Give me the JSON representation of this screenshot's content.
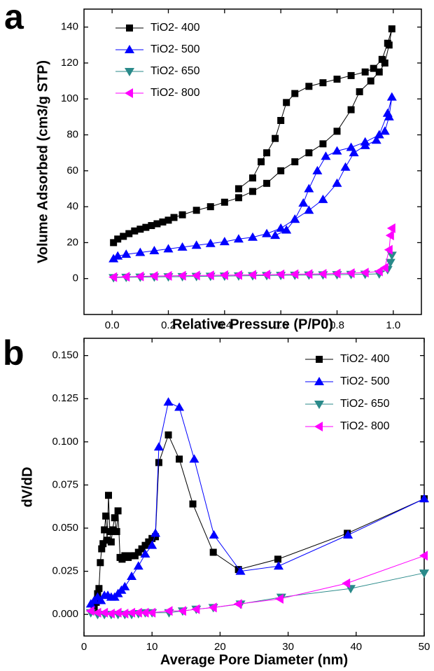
{
  "chart_data": [
    {
      "type": "line",
      "panel_label": "a",
      "x_label": "Relative Pressure (P/P0)",
      "y_label": "Volume Adsorbed (cm3/g STP)",
      "xlim": [
        -0.1,
        1.1
      ],
      "ylim": [
        -20,
        150
      ],
      "xticks": [
        {
          "value": 0,
          "label": "0.0"
        },
        0.2,
        0.4,
        0.6,
        0.8,
        {
          "value": 1,
          "label": "1.0"
        }
      ],
      "yticks": [
        0,
        20,
        40,
        60,
        80,
        100,
        120,
        140
      ],
      "legend": "upper left",
      "series": [
        {
          "name": "TiO2- 400",
          "color": "#000000",
          "marker": "square",
          "x": [
            0.005,
            0.02,
            0.04,
            0.06,
            0.08,
            0.1,
            0.12,
            0.14,
            0.16,
            0.18,
            0.2,
            0.22,
            0.25,
            0.3,
            0.35,
            0.4,
            0.45,
            0.5,
            0.55,
            0.6,
            0.65,
            0.7,
            0.75,
            0.8,
            0.85,
            0.88,
            0.92,
            0.95,
            0.97,
            0.985,
            0.995,
            0.98,
            0.96,
            0.93,
            0.9,
            0.85,
            0.8,
            0.75,
            0.7,
            0.65,
            0.62,
            0.6,
            0.58,
            0.55,
            0.53,
            0.5,
            0.45
          ],
          "values": [
            20,
            22,
            23.5,
            25,
            26.5,
            27.5,
            28.5,
            29.5,
            30.5,
            31.5,
            32.5,
            34,
            35.5,
            38,
            40,
            42.5,
            45,
            48.5,
            53,
            60,
            65,
            70,
            75,
            82,
            94,
            104,
            110,
            115,
            120,
            130,
            139,
            131,
            122,
            117,
            115,
            113,
            111,
            109,
            107,
            103,
            98,
            88,
            78,
            70,
            65,
            56,
            50
          ]
        },
        {
          "name": "TiO2- 500",
          "color": "#0000ff",
          "marker": "triangle-up",
          "x": [
            0.005,
            0.02,
            0.05,
            0.1,
            0.15,
            0.2,
            0.25,
            0.3,
            0.35,
            0.4,
            0.45,
            0.5,
            0.55,
            0.6,
            0.65,
            0.7,
            0.75,
            0.8,
            0.83,
            0.86,
            0.9,
            0.94,
            0.97,
            0.985,
            0.995,
            0.98,
            0.95,
            0.9,
            0.85,
            0.8,
            0.76,
            0.73,
            0.7,
            0.68,
            0.65,
            0.62,
            0.58
          ],
          "values": [
            11,
            12.5,
            13.5,
            14.5,
            15.5,
            16.5,
            17.5,
            18.5,
            19.5,
            20.5,
            22,
            23,
            25,
            28,
            33,
            38,
            44,
            53,
            62,
            70,
            74,
            77,
            82,
            90,
            101,
            92,
            80,
            76,
            73,
            71,
            68,
            60,
            50,
            42,
            33,
            27,
            24
          ]
        },
        {
          "name": "TiO2- 650",
          "color": "#2a8a8a",
          "marker": "triangle-down",
          "x": [
            0.005,
            0.05,
            0.1,
            0.15,
            0.2,
            0.25,
            0.3,
            0.35,
            0.4,
            0.45,
            0.5,
            0.55,
            0.6,
            0.65,
            0.7,
            0.75,
            0.8,
            0.85,
            0.9,
            0.95,
            0.98,
            0.99,
            0.995
          ],
          "values": [
            0.5,
            0.7,
            0.8,
            0.9,
            1,
            1.1,
            1.2,
            1.3,
            1.4,
            1.5,
            1.6,
            1.7,
            1.8,
            1.9,
            2,
            2.1,
            2.2,
            2.3,
            2.4,
            2.6,
            5,
            9,
            13
          ]
        },
        {
          "name": "TiO2- 800",
          "color": "#ff00ff",
          "marker": "triangle-left",
          "x": [
            0.005,
            0.05,
            0.1,
            0.15,
            0.2,
            0.25,
            0.3,
            0.35,
            0.4,
            0.45,
            0.5,
            0.55,
            0.6,
            0.65,
            0.7,
            0.75,
            0.8,
            0.85,
            0.9,
            0.95,
            0.97,
            0.985,
            0.99,
            0.995
          ],
          "values": [
            0.8,
            1,
            1.2,
            1.4,
            1.5,
            1.6,
            1.7,
            1.8,
            1.9,
            2,
            2.1,
            2.2,
            2.3,
            2.4,
            2.5,
            2.6,
            2.8,
            3,
            3.3,
            4,
            6,
            16,
            24,
            28
          ]
        }
      ]
    },
    {
      "type": "line",
      "panel_label": "b",
      "x_label": "Average Pore Diameter (nm)",
      "y_label": "dV/dD",
      "xlim": [
        0,
        50
      ],
      "ylim": [
        -0.0125,
        0.16
      ],
      "xticks": [
        0,
        10,
        20,
        30,
        40,
        50
      ],
      "yticks": [
        {
          "value": 0,
          "label": "0.000"
        },
        {
          "value": 0.025,
          "label": "0.025"
        },
        {
          "value": 0.05,
          "label": "0.050"
        },
        {
          "value": 0.075,
          "label": "0.075"
        },
        {
          "value": 0.1,
          "label": "0.100"
        },
        {
          "value": 0.125,
          "label": "0.125"
        },
        {
          "value": 0.15,
          "label": "0.150"
        }
      ],
      "legend": "upper right",
      "series": [
        {
          "name": "TiO2- 400",
          "color": "#000000",
          "marker": "square",
          "x": [
            1.5,
            1.8,
            2,
            2.2,
            2.4,
            2.6,
            2.8,
            3,
            3.2,
            3.4,
            3.6,
            3.8,
            4,
            4.2,
            4.5,
            4.8,
            5,
            5.3,
            5.6,
            6,
            6.5,
            7,
            7.5,
            8,
            8.5,
            9,
            9.5,
            10,
            10.5,
            11,
            12.4,
            14,
            16,
            19,
            22.7,
            28.5,
            38.7,
            50
          ],
          "values": [
            0.003,
            0.007,
            0.012,
            0.015,
            0.03,
            0.038,
            0.041,
            0.049,
            0.057,
            0.043,
            0.069,
            0.048,
            0.042,
            0.049,
            0.056,
            0.048,
            0.06,
            0.033,
            0.032,
            0.034,
            0.033,
            0.034,
            0.034,
            0.036,
            0.038,
            0.04,
            0.042,
            0.044,
            0.045,
            0.088,
            0.104,
            0.09,
            0.064,
            0.036,
            0.026,
            0.032,
            0.047,
            0.067
          ]
        },
        {
          "name": "TiO2- 500",
          "color": "#0000ff",
          "marker": "triangle-up",
          "x": [
            1,
            1.5,
            2,
            2.5,
            3,
            3.5,
            4,
            4.5,
            5,
            5.5,
            6,
            7,
            8,
            9,
            10,
            10.5,
            11,
            12.4,
            14,
            16.2,
            19.1,
            23,
            28.6,
            38.8,
            50
          ],
          "values": [
            0.006,
            0.008,
            0.01,
            0.008,
            0.011,
            0.011,
            0.01,
            0.01,
            0.012,
            0.014,
            0.016,
            0.022,
            0.028,
            0.035,
            0.04,
            0.047,
            0.097,
            0.123,
            0.12,
            0.09,
            0.046,
            0.025,
            0.028,
            0.046,
            0.067
          ]
        },
        {
          "name": "TiO2- 650",
          "color": "#2a8a8a",
          "marker": "triangle-down",
          "x": [
            1,
            2,
            3,
            4,
            5,
            6,
            7,
            8,
            9,
            10,
            12.5,
            14.5,
            16.5,
            19,
            23,
            29,
            39.2,
            50
          ],
          "values": [
            0.001,
            0,
            0,
            0,
            0,
            0,
            0,
            0.0005,
            0.001,
            0.001,
            0.001,
            0.002,
            0.003,
            0.004,
            0.006,
            0.01,
            0.015,
            0.024
          ]
        },
        {
          "name": "TiO2- 800",
          "color": "#ff00ff",
          "marker": "triangle-left",
          "x": [
            1,
            2,
            3,
            4,
            5,
            6,
            7,
            8,
            9,
            10,
            12.5,
            14.5,
            16.5,
            19,
            22.7,
            28.8,
            38.6,
            50
          ],
          "values": [
            0.002,
            0.001,
            0.001,
            0.0005,
            0.001,
            0.0005,
            0.001,
            0.001,
            0.001,
            0.001,
            0.002,
            0.002,
            0.003,
            0.004,
            0.006,
            0.009,
            0.018,
            0.034
          ]
        }
      ]
    }
  ]
}
